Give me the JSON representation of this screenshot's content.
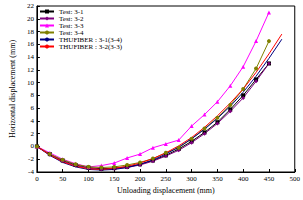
{
  "chart_data": {
    "type": "line",
    "x_label": "Unloading displacement (mm)",
    "y_label": "Horizontal displacement (mm)",
    "x": [
      0,
      25,
      50,
      75,
      100,
      125,
      150,
      175,
      200,
      225,
      250,
      275,
      300,
      325,
      350,
      375,
      400,
      425,
      450,
      475
    ],
    "series": [
      {
        "name": "Test: 3-1",
        "color": "#000000",
        "marker": "square",
        "line_style": "solid",
        "values": [
          0,
          -1.2,
          -2.2,
          -2.9,
          -3.3,
          -3.5,
          -3.4,
          -3.2,
          -2.8,
          -2.2,
          -1.4,
          -0.4,
          0.8,
          2.2,
          3.8,
          5.8,
          8,
          10.5,
          13,
          null
        ]
      },
      {
        "name": "Test: 3-2",
        "color": "#800080",
        "marker": "diamond",
        "line_style": "solid",
        "values": [
          0,
          -1.3,
          -2.3,
          -3,
          -3.4,
          -3.6,
          -3.5,
          -3.3,
          -2.9,
          -2.3,
          -1.5,
          -0.6,
          0.6,
          2,
          3.6,
          5.5,
          7.6,
          10.2,
          13,
          null
        ]
      },
      {
        "name": "Test: 3-3",
        "color": "#ff00ff",
        "marker": "triangle",
        "line_style": "solid",
        "values": [
          0,
          -1,
          -2,
          -2.7,
          -3.2,
          -3,
          -2.6,
          -1.8,
          -1.2,
          -0.2,
          0.4,
          1,
          3.2,
          5,
          7,
          9.5,
          12.5,
          16.5,
          21,
          null
        ]
      },
      {
        "name": "Test: 3-4",
        "color": "#808000",
        "marker": "circle",
        "line_style": "solid",
        "values": [
          0,
          -1.2,
          -2.1,
          -2.8,
          -3.2,
          -3.3,
          -3.2,
          -2.9,
          -2.5,
          -1.9,
          -1,
          -0.2,
          1.2,
          2.8,
          4.5,
          6.5,
          9,
          12.2,
          16.5,
          null
        ]
      },
      {
        "name": "THUFIBER : 3-1(3-4)",
        "color": "#000080",
        "marker": "none",
        "line_style": "solid",
        "values": [
          0,
          -1.4,
          -2.5,
          -3.2,
          -3.6,
          -3.7,
          -3.6,
          -3.3,
          -2.8,
          -2.1,
          -1.2,
          -0.1,
          1.2,
          2.7,
          4.4,
          6.3,
          8.5,
          11,
          13.8,
          16.8
        ]
      },
      {
        "name": "THUFIBER : 3-2(3-3)",
        "color": "#ff0000",
        "marker": "none",
        "line_style": "solid",
        "values": [
          0,
          -1.3,
          -2.4,
          -3.1,
          -3.5,
          -3.6,
          -3.4,
          -3.1,
          -2.6,
          -1.9,
          -1,
          0.1,
          1.4,
          3,
          4.8,
          6.8,
          9,
          11.6,
          14.5,
          17.6
        ]
      }
    ],
    "xlim": [
      0,
      500
    ],
    "xticks": [
      0,
      50,
      100,
      150,
      200,
      250,
      300,
      350,
      400,
      450,
      500
    ],
    "ylim": [
      -4,
      22
    ],
    "yticks": [
      -4,
      -2,
      0,
      2,
      4,
      6,
      8,
      10,
      12,
      14,
      16,
      18,
      20,
      22
    ],
    "grid": false,
    "legend": "upper left"
  }
}
